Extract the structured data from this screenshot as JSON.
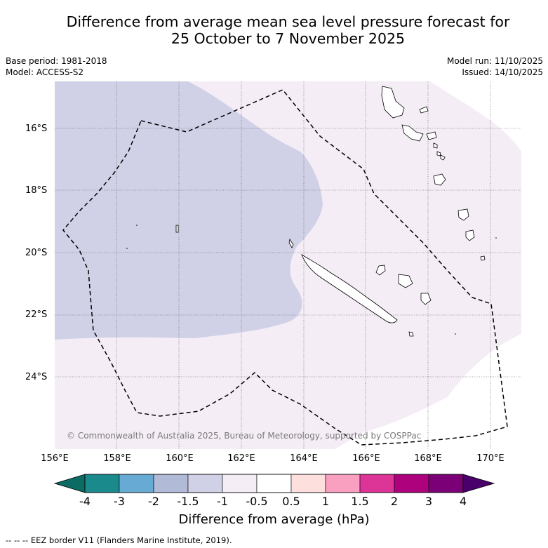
{
  "title": {
    "line1": "Difference from average mean sea level pressure forecast for",
    "line2": "25 October to 7 November 2025"
  },
  "meta": {
    "base_period": "Base period: 1981-2018",
    "model": "Model: ACCESS-S2",
    "model_run": "Model run: 11/10/2025",
    "issued": "Issued: 14/10/2025"
  },
  "map": {
    "latitude_labels": [
      "16°S",
      "18°S",
      "20°S",
      "22°S",
      "24°S"
    ],
    "longitude_labels": [
      "156°E",
      "158°E",
      "160°E",
      "162°E",
      "164°E",
      "166°E",
      "168°E",
      "170°E"
    ],
    "copyright": "© Commonwealth of Australia 2025, Bureau of Meteorology, supported by COSPPac",
    "regions": [
      {
        "name": "western anomaly",
        "category": "-1.5 to -1 hPa",
        "color": "#d0d1e6"
      },
      {
        "name": "central anomaly",
        "category": "-1 to -0.5 hPa",
        "color": "#f5edf6"
      },
      {
        "name": "south-east",
        "category": "-0.5 to 0.5 hPa",
        "color": "#ffffff"
      }
    ]
  },
  "colorbar": {
    "ticks": [
      "-4",
      "-3",
      "-2",
      "-1.5",
      "-1",
      "-0.5",
      "0.5",
      "1",
      "1.5",
      "2",
      "3",
      "4"
    ],
    "colors": [
      "#1b8a8c",
      "#67aad4",
      "#b1bad6",
      "#d0d1e6",
      "#f5edf6",
      "#ffffff",
      "#fde0dd",
      "#f99fbf",
      "#dd3498",
      "#ad017e",
      "#7b0077"
    ],
    "low_color": "#0c6b62",
    "high_color": "#49006a",
    "title": "Difference from average (hPa)"
  },
  "footnote": "--  --  -- EEZ border V11 (Flanders Marine Institute, 2019)."
}
